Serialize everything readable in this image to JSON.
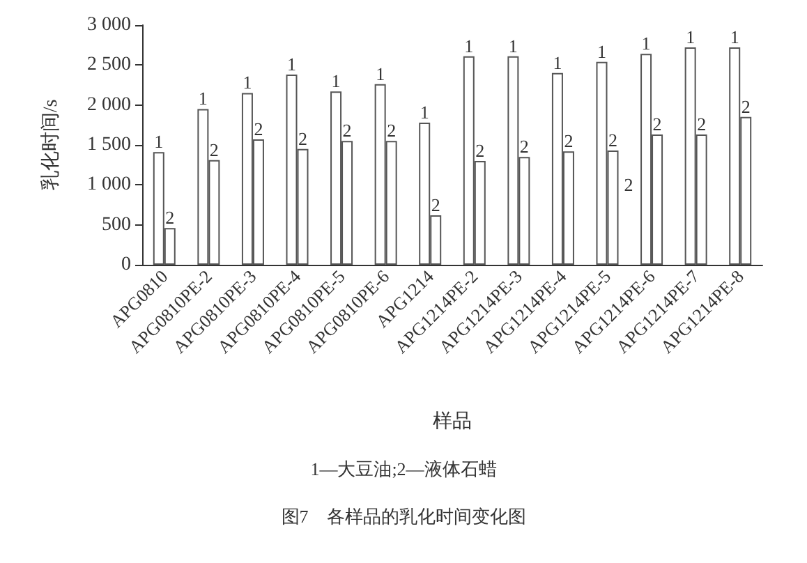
{
  "chart_data": {
    "type": "bar",
    "title": "图7　各样品的乳化时间变化图",
    "xlabel": "样品",
    "ylabel": "乳化时间/s",
    "categories": [
      "APG0810",
      "APG0810PE-2",
      "APG0810PE-3",
      "APG0810PE-4",
      "APG0810PE-5",
      "APG0810PE-6",
      "APG1214",
      "APG1214PE-2",
      "APG1214PE-3",
      "APG1214PE-4",
      "APG1214PE-5",
      "APG1214PE-6",
      "APG1214PE-7",
      "APG1214PE-8"
    ],
    "series": [
      {
        "name": "1",
        "color": "#ffffff",
        "values": [
          1410,
          1950,
          2150,
          2380,
          2170,
          2260,
          1780,
          2610,
          2610,
          2400,
          2540,
          2640,
          2720,
          2720
        ]
      },
      {
        "name": "2",
        "color": "#ffffff",
        "values": [
          460,
          1310,
          1570,
          1450,
          1550,
          1550,
          620,
          1300,
          1350,
          1420,
          1430,
          1630,
          1630,
          1850
        ]
      }
    ],
    "ylim": [
      0,
      3000
    ],
    "yticks": [
      0,
      500,
      {
        "value": 1000,
        "label": "1 000"
      },
      {
        "value": 1500,
        "label": "1 500"
      },
      {
        "value": 2000,
        "label": "2 000"
      },
      {
        "value": 2500,
        "label": "2 500"
      },
      {
        "value": 3000,
        "label": "3 000"
      }
    ],
    "annotations": [
      "1—大豆油;2—液体石蜡",
      {
        "text": "2",
        "x": "APG1214PE-5",
        "y": 1000
      }
    ],
    "grid": false,
    "legend": false
  }
}
